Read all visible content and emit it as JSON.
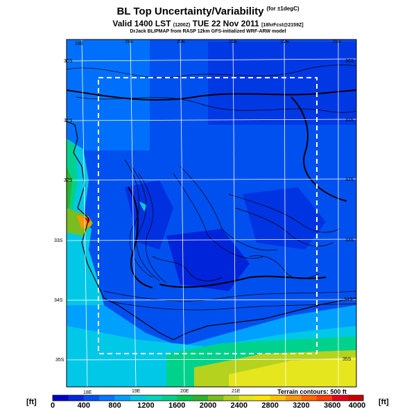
{
  "header": {
    "title": "BL Top Uncertainty/Variability",
    "title_note": "(for ±1degC)",
    "valid": "Valid 1400 LST",
    "valid_code": "(1200Z)",
    "valid_date": "TUE 22 Nov 2011",
    "valid_tail": "[18hrFcst@2159Z]",
    "credit": "DrJack BLIPMAP from RASP 12km GFS-initialized WRF-ARW model"
  },
  "map": {
    "lon_labels_top": [
      "18E",
      "19E",
      "20E",
      "21E",
      "22E",
      "23E"
    ],
    "lon_labels_bottom": [
      "18E",
      "19E",
      "20E",
      "21E"
    ],
    "lat_labels_left": [
      "30S",
      "31S",
      "32S",
      "33S",
      "34S",
      "35S"
    ],
    "lat_labels_right": [
      "30S",
      "31S",
      "32S",
      "33S",
      "34S",
      "35S"
    ],
    "terrain_note": "Terrain contours: 500 ft"
  },
  "colorbar": {
    "unit": "[ft]",
    "ticks": [
      "0",
      "400",
      "800",
      "1200",
      "1600",
      "2000",
      "2400",
      "2800",
      "3200",
      "3600",
      "4000"
    ],
    "colors": [
      "#0000c8",
      "#0028dc",
      "#0050f0",
      "#0078ff",
      "#00a0ff",
      "#00c8e6",
      "#00d7c0",
      "#00d28c",
      "#00c850",
      "#2db42d",
      "#78be1e",
      "#b4d21e",
      "#e6e61e",
      "#ffe600",
      "#ffc300",
      "#ff9600",
      "#ff6900",
      "#ff3c00",
      "#e6001e",
      "#c80000"
    ]
  },
  "icons": {
    "shading": "terrain-shading",
    "domain_box": "dashed-domain-box"
  }
}
